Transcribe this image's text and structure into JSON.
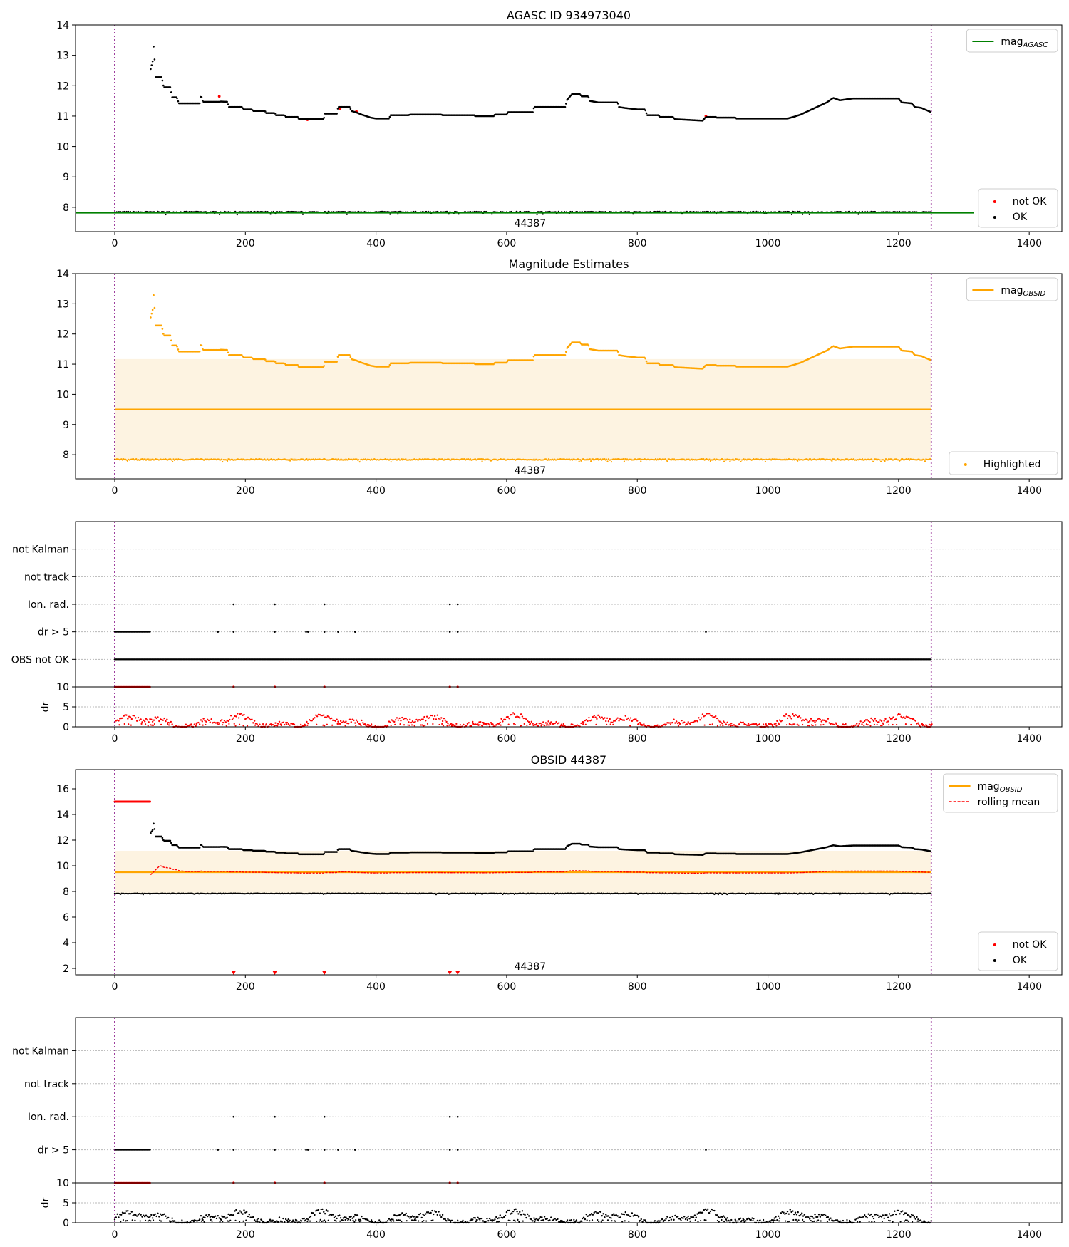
{
  "chart_data": [
    {
      "type": "scatter",
      "title": "AGASC ID 934973040",
      "xlim": [
        -60,
        1450
      ],
      "ylim": [
        7.2,
        14
      ],
      "xticks": [
        0,
        200,
        400,
        600,
        800,
        1000,
        1200,
        1400
      ],
      "yticks": [
        8,
        9,
        10,
        11,
        12,
        13,
        14
      ],
      "obsid_label": "44387",
      "obsid_label_x": 625,
      "obsid_bounds": [
        0,
        1250
      ],
      "series": [
        {
          "name": "mag_AGASC",
          "role": "hline",
          "y": 7.82,
          "x_range": [
            -60,
            1315
          ],
          "color": "#008000"
        },
        {
          "name": "not OK",
          "role": "points",
          "color": "#ff0000",
          "points": [
            [
              160,
              11.65
            ],
            [
              295,
              10.88
            ],
            [
              345,
              11.25
            ],
            [
              370,
              11.15
            ],
            [
              905,
              11.0
            ]
          ]
        },
        {
          "name": "OK",
          "role": "points",
          "color": "#000000",
          "curve": "mag_curve",
          "baseline": 7.84
        }
      ],
      "legends": [
        {
          "pos": "upper-right",
          "entries": [
            {
              "label": "mag",
              "sub": "AGASC",
              "kind": "line",
              "color": "#008000"
            }
          ]
        },
        {
          "pos": "lower-right",
          "entries": [
            {
              "label": "not OK",
              "kind": "dot",
              "color": "#ff0000"
            },
            {
              "label": "OK",
              "kind": "dot",
              "color": "#000000"
            }
          ]
        }
      ]
    },
    {
      "type": "scatter",
      "title": "Magnitude Estimates",
      "xlim": [
        -60,
        1450
      ],
      "ylim": [
        7.2,
        14
      ],
      "xticks": [
        0,
        200,
        400,
        600,
        800,
        1000,
        1200,
        1400
      ],
      "yticks": [
        8,
        9,
        10,
        11,
        12,
        13,
        14
      ],
      "obsid_label": "44387",
      "obsid_label_x": 625,
      "obsid_bounds": [
        0,
        1250
      ],
      "band": [
        7.82,
        11.17
      ],
      "band_color": "#fdf3e1",
      "series": [
        {
          "name": "mag_OBSID",
          "role": "hline",
          "y": 9.5,
          "x_range": [
            0,
            1250
          ],
          "color": "#ffa500"
        },
        {
          "name": "Highlighted",
          "role": "points",
          "color": "#ffa500",
          "curve": "mag_curve",
          "baseline": 7.84
        }
      ],
      "legends": [
        {
          "pos": "upper-right",
          "entries": [
            {
              "label": "mag",
              "sub": "OBSID",
              "kind": "line",
              "color": "#ffa500"
            }
          ]
        },
        {
          "pos": "lower-right",
          "entries": [
            {
              "label": "Highlighted",
              "kind": "dot",
              "color": "#ffa500"
            }
          ]
        }
      ]
    },
    {
      "type": "scatter",
      "subtype": "flags",
      "xlim": [
        -60,
        1450
      ],
      "xticks": [
        0,
        200,
        400,
        600,
        800,
        1000,
        1200,
        1400
      ],
      "obsid_bounds": [
        0,
        1250
      ],
      "categories": [
        "OBS not OK",
        "dr > 5",
        "Ion. rad.",
        "not track",
        "not Kalman"
      ],
      "flag_points": {
        "OBS not OK": "all",
        "dr > 5": [
          [
            0,
            55
          ],
          158,
          182,
          245,
          293,
          296,
          321,
          342,
          368,
          513,
          525,
          905
        ],
        "Ion. rad.": [
          182,
          245,
          321,
          513,
          525
        ],
        "not track": [],
        "not Kalman": []
      },
      "dr": {
        "ylabel": "dr",
        "ylim": [
          0,
          10
        ],
        "yticks": [
          0,
          5,
          10
        ],
        "color": "#ff0000",
        "high_points": [
          [
            0,
            55
          ],
          182,
          245,
          321,
          513,
          525
        ]
      }
    },
    {
      "type": "scatter",
      "title": "OBSID 44387",
      "xlim": [
        -60,
        1450
      ],
      "ylim": [
        1.5,
        17.5
      ],
      "xticks": [
        0,
        200,
        400,
        600,
        800,
        1000,
        1200,
        1400
      ],
      "yticks": [
        2,
        4,
        6,
        8,
        10,
        12,
        14,
        16
      ],
      "obsid_label": "44387",
      "obsid_label_x": 625,
      "obsid_bounds": [
        0,
        1250
      ],
      "band": [
        7.82,
        11.17
      ],
      "band_color": "#fdf3e1",
      "series": [
        {
          "name": "mag_OBSID",
          "role": "hline",
          "y": 9.5,
          "x_range": [
            0,
            1250
          ],
          "color": "#ffa500"
        },
        {
          "name": "rolling mean",
          "role": "dashed",
          "color": "#ff0000"
        },
        {
          "name": "not OK",
          "role": "points",
          "color": "#ff0000",
          "first_segment_y": 15.0,
          "first_segment_x": [
            0,
            55
          ]
        },
        {
          "name": "OK",
          "role": "points",
          "color": "#000000",
          "curve": "mag_curve",
          "baseline": 7.84
        }
      ],
      "markers": {
        "y": 1.5,
        "x": [
          182,
          245,
          321,
          513,
          525
        ],
        "color": "#ff0000"
      },
      "legends": [
        {
          "pos": "upper-right",
          "entries": [
            {
              "label": "mag",
              "sub": "OBSID",
              "kind": "line",
              "color": "#ffa500"
            },
            {
              "label": "rolling mean",
              "kind": "dash",
              "color": "#ff0000"
            }
          ]
        },
        {
          "pos": "lower-right",
          "entries": [
            {
              "label": "not OK",
              "kind": "dot",
              "color": "#ff0000"
            },
            {
              "label": "OK",
              "kind": "dot",
              "color": "#000000"
            }
          ]
        }
      ]
    },
    {
      "type": "scatter",
      "subtype": "flags",
      "xlim": [
        -60,
        1450
      ],
      "xticks": [
        0,
        200,
        400,
        600,
        800,
        1000,
        1200,
        1400
      ],
      "obsid_bounds": [
        0,
        1250
      ],
      "categories": [
        "dr > 5",
        "Ion. rad.",
        "not track",
        "not Kalman"
      ],
      "flag_points": {
        "dr > 5": [
          [
            0,
            55
          ],
          158,
          182,
          245,
          293,
          296,
          321,
          342,
          368,
          513,
          525,
          905
        ],
        "Ion. rad.": [
          182,
          245,
          321,
          513,
          525
        ],
        "not track": [],
        "not Kalman": []
      },
      "dr": {
        "ylabel": "dr",
        "ylim": [
          0,
          10
        ],
        "yticks": [
          0,
          5,
          10
        ],
        "color": "#000000",
        "high_points": [
          [
            0,
            55
          ],
          182,
          245,
          321,
          513,
          525
        ]
      }
    }
  ],
  "mag_curve": [
    [
      55,
      12.55
    ],
    [
      58,
      12.8
    ],
    [
      60,
      13.45
    ],
    [
      62,
      12.28
    ],
    [
      72,
      12.28
    ],
    [
      75,
      11.95
    ],
    [
      85,
      11.95
    ],
    [
      88,
      11.62
    ],
    [
      95,
      11.62
    ],
    [
      98,
      11.42
    ],
    [
      130,
      11.42
    ],
    [
      132,
      11.7
    ],
    [
      135,
      11.47
    ],
    [
      160,
      11.47
    ],
    [
      162,
      11.48
    ],
    [
      172,
      11.47
    ],
    [
      175,
      11.3
    ],
    [
      195,
      11.3
    ],
    [
      197,
      11.22
    ],
    [
      210,
      11.22
    ],
    [
      212,
      11.17
    ],
    [
      230,
      11.17
    ],
    [
      232,
      11.1
    ],
    [
      245,
      11.1
    ],
    [
      247,
      11.03
    ],
    [
      260,
      11.03
    ],
    [
      262,
      10.97
    ],
    [
      280,
      10.97
    ],
    [
      282,
      10.9
    ],
    [
      320,
      10.9
    ],
    [
      322,
      11.08
    ],
    [
      340,
      11.08
    ],
    [
      342,
      11.3
    ],
    [
      360,
      11.3
    ],
    [
      362,
      11.17
    ],
    [
      370,
      11.12
    ],
    [
      378,
      11.05
    ],
    [
      385,
      11.0
    ],
    [
      392,
      10.95
    ],
    [
      400,
      10.92
    ],
    [
      420,
      10.92
    ],
    [
      422,
      11.03
    ],
    [
      450,
      11.03
    ],
    [
      452,
      11.05
    ],
    [
      500,
      11.05
    ],
    [
      502,
      11.03
    ],
    [
      550,
      11.03
    ],
    [
      552,
      11.0
    ],
    [
      580,
      11.0
    ],
    [
      582,
      11.05
    ],
    [
      600,
      11.05
    ],
    [
      602,
      11.13
    ],
    [
      640,
      11.13
    ],
    [
      642,
      11.3
    ],
    [
      690,
      11.3
    ],
    [
      692,
      11.52
    ],
    [
      700,
      11.72
    ],
    [
      712,
      11.72
    ],
    [
      715,
      11.65
    ],
    [
      725,
      11.65
    ],
    [
      727,
      11.5
    ],
    [
      740,
      11.45
    ],
    [
      770,
      11.45
    ],
    [
      772,
      11.3
    ],
    [
      780,
      11.27
    ],
    [
      800,
      11.22
    ],
    [
      812,
      11.22
    ],
    [
      815,
      11.03
    ],
    [
      832,
      11.03
    ],
    [
      835,
      10.97
    ],
    [
      855,
      10.97
    ],
    [
      857,
      10.9
    ],
    [
      900,
      10.85
    ],
    [
      905,
      10.97
    ],
    [
      920,
      10.97
    ],
    [
      922,
      10.95
    ],
    [
      950,
      10.95
    ],
    [
      952,
      10.92
    ],
    [
      1000,
      10.92
    ],
    [
      1030,
      10.92
    ],
    [
      1040,
      10.98
    ],
    [
      1050,
      11.05
    ],
    [
      1060,
      11.15
    ],
    [
      1070,
      11.25
    ],
    [
      1080,
      11.35
    ],
    [
      1090,
      11.45
    ],
    [
      1100,
      11.6
    ],
    [
      1110,
      11.52
    ],
    [
      1120,
      11.55
    ],
    [
      1130,
      11.58
    ],
    [
      1200,
      11.58
    ],
    [
      1205,
      11.45
    ],
    [
      1220,
      11.42
    ],
    [
      1225,
      11.3
    ],
    [
      1235,
      11.27
    ],
    [
      1240,
      11.22
    ],
    [
      1250,
      11.13
    ]
  ]
}
